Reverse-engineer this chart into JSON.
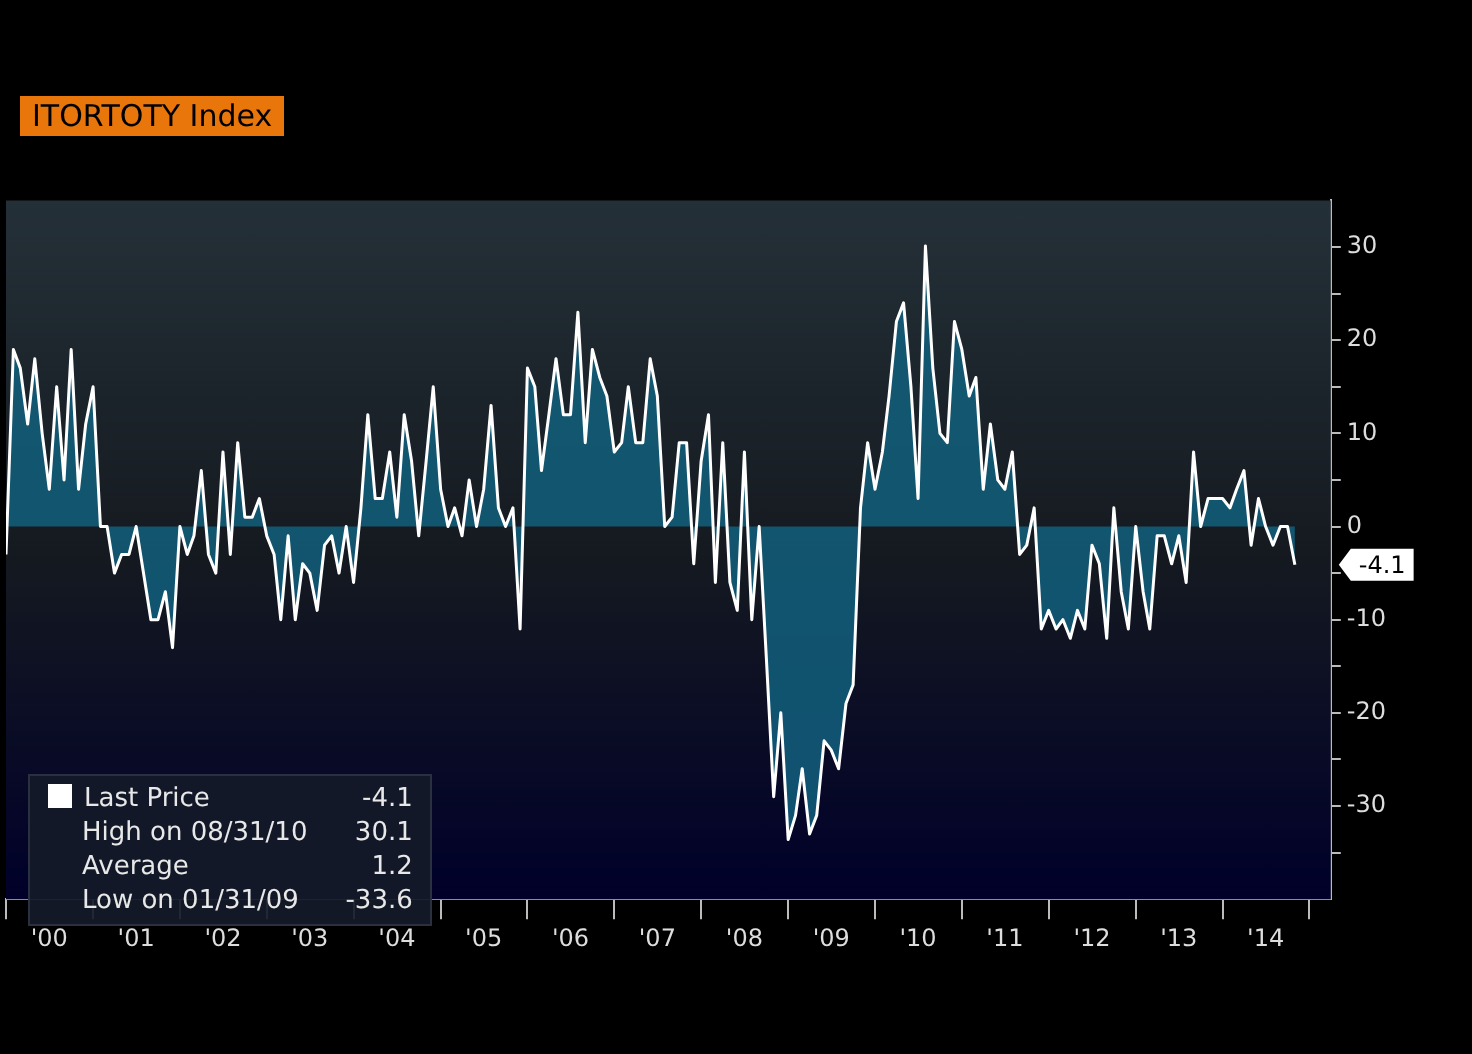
{
  "chart_data": {
    "type": "area",
    "title": "ITORTOTY Index",
    "x": [
      "2000-01",
      "2000-02",
      "2000-03",
      "2000-04",
      "2000-05",
      "2000-06",
      "2000-07",
      "2000-08",
      "2000-09",
      "2000-10",
      "2000-11",
      "2000-12",
      "2001-01",
      "2001-02",
      "2001-03",
      "2001-04",
      "2001-05",
      "2001-06",
      "2001-07",
      "2001-08",
      "2001-09",
      "2001-10",
      "2001-11",
      "2001-12",
      "2002-01",
      "2002-02",
      "2002-03",
      "2002-04",
      "2002-05",
      "2002-06",
      "2002-07",
      "2002-08",
      "2002-09",
      "2002-10",
      "2002-11",
      "2002-12",
      "2003-01",
      "2003-02",
      "2003-03",
      "2003-04",
      "2003-05",
      "2003-06",
      "2003-07",
      "2003-08",
      "2003-09",
      "2003-10",
      "2003-11",
      "2003-12",
      "2004-01",
      "2004-02",
      "2004-03",
      "2004-04",
      "2004-05",
      "2004-06",
      "2004-07",
      "2004-08",
      "2004-09",
      "2004-10",
      "2004-11",
      "2004-12",
      "2005-01",
      "2005-02",
      "2005-03",
      "2005-04",
      "2005-05",
      "2005-06",
      "2005-07",
      "2005-08",
      "2005-09",
      "2005-10",
      "2005-11",
      "2005-12",
      "2006-01",
      "2006-02",
      "2006-03",
      "2006-04",
      "2006-05",
      "2006-06",
      "2006-07",
      "2006-08",
      "2006-09",
      "2006-10",
      "2006-11",
      "2006-12",
      "2007-01",
      "2007-02",
      "2007-03",
      "2007-04",
      "2007-05",
      "2007-06",
      "2007-07",
      "2007-08",
      "2007-09",
      "2007-10",
      "2007-11",
      "2007-12",
      "2008-01",
      "2008-02",
      "2008-03",
      "2008-04",
      "2008-05",
      "2008-06",
      "2008-07",
      "2008-08",
      "2008-09",
      "2008-10",
      "2008-11",
      "2008-12",
      "2009-01",
      "2009-02",
      "2009-03",
      "2009-04",
      "2009-05",
      "2009-06",
      "2009-07",
      "2009-08",
      "2009-09",
      "2009-10",
      "2009-11",
      "2009-12",
      "2010-01",
      "2010-02",
      "2010-03",
      "2010-04",
      "2010-05",
      "2010-06",
      "2010-07",
      "2010-08",
      "2010-09",
      "2010-10",
      "2010-11",
      "2010-12",
      "2011-01",
      "2011-02",
      "2011-03",
      "2011-04",
      "2011-05",
      "2011-06",
      "2011-07",
      "2011-08",
      "2011-09",
      "2011-10",
      "2011-11",
      "2011-12",
      "2012-01",
      "2012-02",
      "2012-03",
      "2012-04",
      "2012-05",
      "2012-06",
      "2012-07",
      "2012-08",
      "2012-09",
      "2012-10",
      "2012-11",
      "2012-12",
      "2013-01",
      "2013-02",
      "2013-03",
      "2013-04",
      "2013-05",
      "2013-06",
      "2013-07",
      "2013-08",
      "2013-09",
      "2013-10",
      "2013-11",
      "2013-12",
      "2014-01",
      "2014-02",
      "2014-03",
      "2014-04",
      "2014-05",
      "2014-06",
      "2014-07",
      "2014-08",
      "2014-09",
      "2014-10",
      "2014-11"
    ],
    "series": [
      {
        "name": "Last Price",
        "color": "#ffffff",
        "values": [
          -3,
          19,
          17,
          11,
          18,
          10,
          4,
          15,
          5,
          19,
          4,
          11,
          15,
          0,
          0,
          -5,
          -3,
          -3,
          0,
          -5,
          -10,
          -10,
          -7,
          -13,
          0,
          -3,
          -1,
          6,
          -3,
          -5,
          8,
          -3,
          9,
          1,
          1,
          3,
          -1,
          -3,
          -10,
          -1,
          -10,
          -4,
          -5,
          -9,
          -2,
          -1,
          -5,
          0,
          -6,
          2,
          12,
          3,
          3,
          8,
          1,
          12,
          7,
          -1,
          7,
          15,
          4,
          0,
          2,
          -1,
          5,
          0,
          4,
          13,
          2,
          0,
          2,
          -11,
          17,
          15,
          6,
          12,
          18,
          12,
          12,
          23,
          9,
          19,
          16,
          14,
          8,
          9,
          15,
          9,
          9,
          18,
          14,
          0,
          1,
          9,
          9,
          -4,
          7,
          12,
          -6,
          9,
          -6,
          -9,
          8,
          -10,
          0,
          -14,
          -29,
          -20,
          -33.6,
          -31,
          -26,
          -33,
          -31,
          -23,
          -24,
          -26,
          -19,
          -17,
          2,
          9,
          4,
          8,
          14,
          22,
          24,
          15,
          3,
          30.1,
          17,
          10,
          9,
          22,
          19,
          14,
          16,
          4,
          11,
          5,
          4,
          8,
          -3,
          -2,
          2,
          -11,
          -9,
          -11,
          -10,
          -12,
          -9,
          -11,
          -2,
          -4,
          -12,
          2,
          -7,
          -11,
          0,
          -7,
          -11,
          -1,
          -1,
          -4,
          -1,
          -6,
          8,
          0,
          3,
          3,
          3,
          2,
          4,
          6,
          -2,
          3,
          0,
          -2,
          0,
          0,
          -4.1
        ]
      }
    ],
    "xlim": [
      "2000-01",
      "2015-04"
    ],
    "xticks": [
      {
        "value": "2000-01",
        "label": null
      },
      {
        "value": "2000-07",
        "label": "'00"
      },
      {
        "value": "2001-01",
        "label": null
      },
      {
        "value": "2001-07",
        "label": "'01"
      },
      {
        "value": "2002-01",
        "label": null
      },
      {
        "value": "2002-07",
        "label": "'02"
      },
      {
        "value": "2003-01",
        "label": null
      },
      {
        "value": "2003-07",
        "label": "'03"
      },
      {
        "value": "2004-01",
        "label": null
      },
      {
        "value": "2004-07",
        "label": "'04"
      },
      {
        "value": "2005-01",
        "label": null
      },
      {
        "value": "2005-07",
        "label": "'05"
      },
      {
        "value": "2006-01",
        "label": null
      },
      {
        "value": "2006-07",
        "label": "'06"
      },
      {
        "value": "2007-01",
        "label": null
      },
      {
        "value": "2007-07",
        "label": "'07"
      },
      {
        "value": "2008-01",
        "label": null
      },
      {
        "value": "2008-07",
        "label": "'08"
      },
      {
        "value": "2009-01",
        "label": null
      },
      {
        "value": "2009-07",
        "label": "'09"
      },
      {
        "value": "2010-01",
        "label": null
      },
      {
        "value": "2010-07",
        "label": "'10"
      },
      {
        "value": "2011-01",
        "label": null
      },
      {
        "value": "2011-07",
        "label": "'11"
      },
      {
        "value": "2012-01",
        "label": null
      },
      {
        "value": "2012-07",
        "label": "'12"
      },
      {
        "value": "2013-01",
        "label": null
      },
      {
        "value": "2013-07",
        "label": "'13"
      },
      {
        "value": "2014-01",
        "label": null
      },
      {
        "value": "2014-07",
        "label": "'14"
      },
      {
        "value": "2015-01",
        "label": null
      }
    ],
    "ylim": [
      -40,
      35
    ],
    "yticks": [
      {
        "value": -35,
        "label": null
      },
      -30,
      {
        "value": -25,
        "label": null
      },
      -20,
      {
        "value": -15,
        "label": null
      },
      -10,
      {
        "value": -5,
        "label": null
      },
      0,
      {
        "value": 5,
        "label": null
      },
      10,
      {
        "value": 15,
        "label": null
      },
      20,
      {
        "value": 25,
        "label": null
      },
      30
    ],
    "grid": false,
    "legend": "bottom left",
    "annotations": [
      {
        "text": "-4.1",
        "x": "2014-11",
        "y": -4.1
      },
      "High on 08/31/10 30.1",
      "Average 1.2",
      "Low on 01/31/09 -33.6"
    ]
  }
}
